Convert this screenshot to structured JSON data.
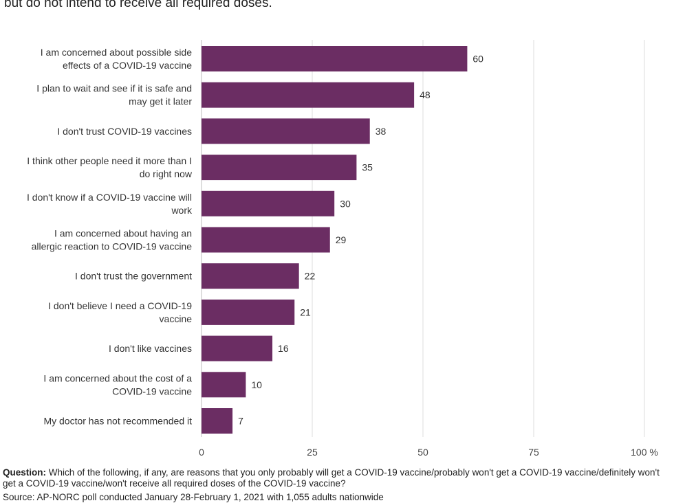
{
  "header": {
    "text": "but do not intend to receive all required doses."
  },
  "chart_data": {
    "type": "bar",
    "orientation": "horizontal",
    "categories": [
      [
        "I am concerned about possible side",
        "effects of a COVID-19 vaccine"
      ],
      [
        "I plan to wait and see if it is safe and",
        "may get it later"
      ],
      [
        "I don't trust COVID-19 vaccines"
      ],
      [
        "I think other people need it more than I",
        "do right now"
      ],
      [
        "I don't know if a COVID-19 vaccine will",
        "work"
      ],
      [
        "I am concerned about having an",
        "allergic reaction to COVID-19 vaccine"
      ],
      [
        "I don't trust the government"
      ],
      [
        "I don't believe I need a COVID-19",
        "vaccine"
      ],
      [
        "I don't like vaccines"
      ],
      [
        "I am concerned about the cost of a",
        "COVID-19 vaccine"
      ],
      [
        "My doctor has not recommended it"
      ]
    ],
    "values": [
      60,
      48,
      38,
      35,
      30,
      29,
      22,
      21,
      16,
      10,
      7
    ],
    "xlim": [
      0,
      100
    ],
    "xticks": [
      "0",
      "25",
      "50",
      "75",
      "100 %"
    ],
    "bar_color": "#6b2d63",
    "grid": true
  },
  "footer": {
    "question_label": "Question:",
    "question_text": " Which of the following, if any, are reasons that you only probably will get a COVID-19 vaccine/probably won't get a COVID-19 vaccine/definitely won't get a COVID-19 vaccine/won't receive all required doses of the COVID-19 vaccine?",
    "source_text": "Source: AP-NORC poll conducted January 28-February 1, 2021 with 1,055 adults nationwide"
  }
}
